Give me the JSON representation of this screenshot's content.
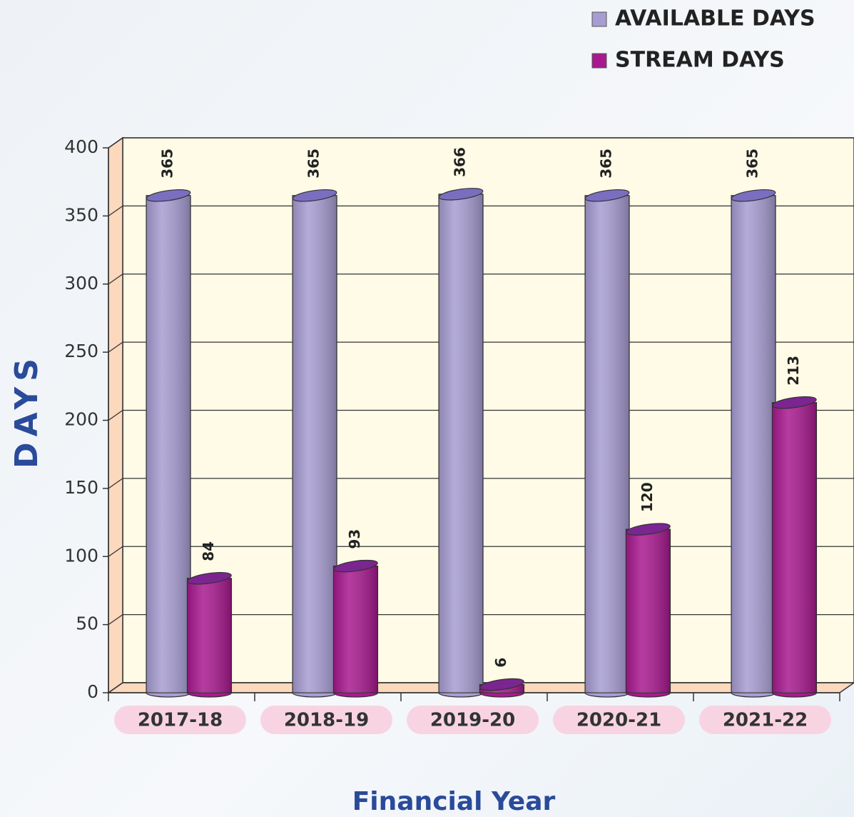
{
  "chart_data": {
    "type": "bar",
    "categories": [
      "2017-18",
      "2018-19",
      "2019-20",
      "2020-21",
      "2021-22"
    ],
    "series": [
      {
        "name": "AVAILABLE DAYS",
        "color": "#a79dd2",
        "values": [
          365,
          365,
          366,
          365,
          365
        ]
      },
      {
        "name": "STREAM DAYS",
        "color": "#a8198f",
        "values": [
          84,
          93,
          6,
          120,
          213
        ]
      }
    ],
    "ylim": [
      0,
      400
    ],
    "yticks": [
      0,
      50,
      100,
      150,
      200,
      250,
      300,
      350,
      400
    ],
    "ylabel": "DAYS",
    "xlabel": "Financial Year",
    "grid": true,
    "legend": "top-right"
  }
}
